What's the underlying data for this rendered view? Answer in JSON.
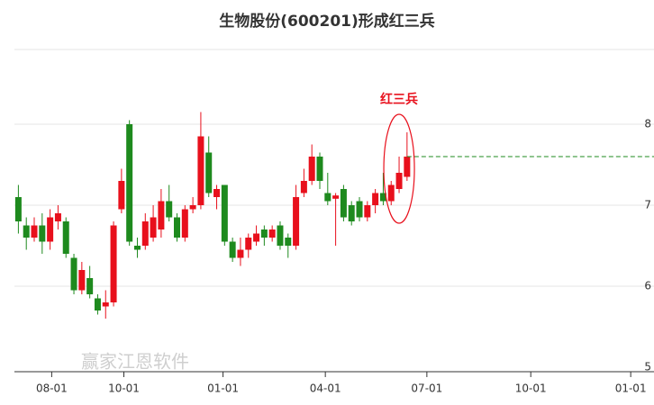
{
  "chart_data": {
    "type": "candlestick",
    "title": "生物股份(600201)形成红三兵",
    "annotation": "红三兵",
    "watermark": "赢家江恩软件",
    "up_color": "#e8101c",
    "down_color": "#1e8a1e",
    "x": [
      0,
      1,
      2,
      3,
      4,
      5,
      6,
      7,
      8,
      9,
      10,
      11,
      12,
      13,
      14,
      15,
      16,
      17,
      18,
      19,
      20,
      21,
      22,
      23,
      24,
      25,
      26,
      27,
      28,
      29,
      30,
      31,
      32,
      33,
      34,
      35,
      36,
      37,
      38,
      39,
      40,
      41,
      42,
      43,
      44,
      45,
      46,
      47,
      48,
      49
    ],
    "open": [
      7.1,
      6.75,
      6.6,
      6.75,
      6.55,
      6.8,
      6.8,
      6.35,
      5.95,
      6.1,
      5.85,
      5.75,
      5.8,
      6.95,
      8.0,
      6.5,
      6.5,
      6.6,
      6.7,
      7.05,
      6.85,
      6.6,
      6.95,
      7.0,
      7.65,
      7.1,
      7.25,
      6.55,
      6.35,
      6.45,
      6.55,
      6.7,
      6.6,
      6.75,
      6.6,
      6.5,
      7.15,
      7.3,
      7.6,
      7.15,
      7.08,
      7.2,
      7.0,
      7.05,
      6.85,
      7.0,
      7.15,
      7.05,
      7.2,
      7.35
    ],
    "high": [
      7.25,
      6.85,
      6.85,
      6.9,
      6.95,
      7.0,
      6.85,
      6.4,
      6.3,
      6.25,
      5.9,
      5.95,
      6.8,
      7.45,
      8.05,
      6.6,
      6.9,
      7.0,
      7.2,
      7.25,
      6.9,
      7.0,
      7.1,
      8.15,
      7.85,
      7.25,
      7.25,
      6.6,
      6.6,
      6.65,
      6.75,
      6.75,
      6.75,
      6.8,
      6.65,
      7.25,
      7.45,
      7.75,
      7.65,
      7.4,
      7.15,
      7.25,
      7.05,
      7.1,
      7.05,
      7.2,
      7.4,
      7.3,
      7.6,
      7.9
    ],
    "low": [
      6.65,
      6.45,
      6.55,
      6.4,
      6.45,
      6.7,
      6.35,
      5.9,
      5.9,
      5.85,
      5.65,
      5.6,
      5.75,
      6.9,
      6.5,
      6.35,
      6.45,
      6.55,
      6.6,
      6.8,
      6.55,
      6.55,
      6.9,
      6.95,
      7.1,
      6.95,
      6.5,
      6.3,
      6.25,
      6.35,
      6.5,
      6.5,
      6.55,
      6.45,
      6.35,
      6.45,
      7.1,
      7.25,
      7.2,
      7.0,
      6.5,
      6.8,
      6.75,
      6.8,
      6.8,
      6.9,
      7.0,
      7.0,
      7.15,
      7.3
    ],
    "close": [
      6.8,
      6.6,
      6.75,
      6.55,
      6.85,
      6.9,
      6.4,
      5.95,
      6.2,
      5.9,
      5.7,
      5.8,
      6.75,
      7.3,
      6.55,
      6.45,
      6.8,
      6.85,
      7.05,
      6.85,
      6.6,
      6.95,
      7.0,
      7.85,
      7.15,
      7.2,
      6.55,
      6.35,
      6.45,
      6.6,
      6.65,
      6.6,
      6.7,
      6.5,
      6.5,
      7.1,
      7.3,
      7.6,
      7.3,
      7.05,
      7.12,
      6.85,
      6.8,
      6.85,
      7.0,
      7.15,
      7.05,
      7.25,
      7.4,
      7.6
    ],
    "xlim": [
      -0.5,
      79
    ],
    "xticks": [
      {
        "value": 4.2,
        "label": "08-01"
      },
      {
        "value": 13.3,
        "label": "10-01"
      },
      {
        "value": 25.8,
        "label": "01-01"
      },
      {
        "value": 38.7,
        "label": "04-01"
      },
      {
        "value": 51.5,
        "label": "07-01"
      },
      {
        "value": 64.6,
        "label": "10-01"
      },
      {
        "value": 77.2,
        "label": "01-01"
      }
    ],
    "ylim": [
      5,
      8.9
    ],
    "yticks": [
      5,
      6,
      7,
      8
    ],
    "grid": true
  }
}
